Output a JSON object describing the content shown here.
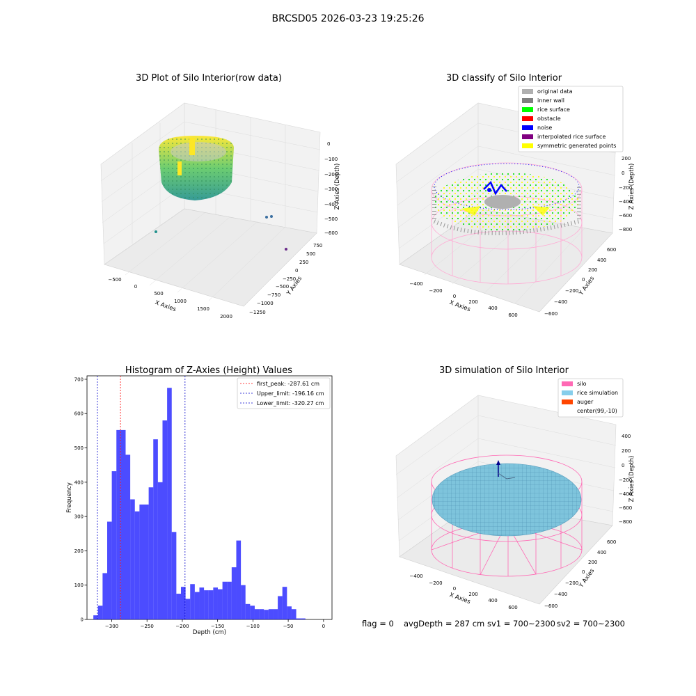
{
  "suptitle": "BRCSD05 2026-03-23 19:25:26",
  "footer": {
    "flag": "flag = 0",
    "avg_depth": "avgDepth = 287 cm",
    "sv1": "sv1 = 700~2300",
    "sv2": "sv2 = 700~2300"
  },
  "panel1": {
    "title": "3D Plot of Silo Interior(row data)",
    "xlabel": "X Axies",
    "ylabel": "Y Axies",
    "zlabel": "Z Axies (Depth)",
    "xticks": [
      "−500",
      "0",
      "500",
      "1000",
      "1500",
      "2000"
    ],
    "yticks": [
      "750",
      "500",
      "250",
      "0",
      "−250",
      "−500",
      "−750",
      "−1000",
      "−1250"
    ],
    "zticks": [
      "0",
      "−100",
      "−200",
      "−300",
      "−400",
      "−500",
      "−600"
    ]
  },
  "panel2": {
    "title": "3D classify of Silo Interior",
    "xlabel": "X Axies",
    "ylabel": "Y Axies",
    "zlabel": "Z Axies (Depth)",
    "xticks": [
      "−400",
      "−200",
      "0",
      "200",
      "400",
      "600"
    ],
    "yticks": [
      "600",
      "400",
      "200",
      "0",
      "−200",
      "−400",
      "−600"
    ],
    "zticks": [
      "200",
      "0",
      "−200",
      "−400",
      "−600",
      "−800"
    ],
    "legend": [
      {
        "label": "original data",
        "color": "#b0b0b0"
      },
      {
        "label": "inner wall",
        "color": "#808080"
      },
      {
        "label": "rice surface",
        "color": "#00ff00"
      },
      {
        "label": "obstacle",
        "color": "#ff0000"
      },
      {
        "label": "noise",
        "color": "#0000ff"
      },
      {
        "label": "interpolated rice surface",
        "color": "#800080"
      },
      {
        "label": "symmetric generated points",
        "color": "#ffff00"
      }
    ]
  },
  "panel4": {
    "title": "3D simulation of Silo Interior",
    "xlabel": "X Axies",
    "ylabel": "Y Axies",
    "zlabel": "Z Axies (Depth)",
    "xticks": [
      "−400",
      "−200",
      "0",
      "200",
      "400",
      "600"
    ],
    "yticks": [
      "600",
      "400",
      "200",
      "0",
      "−200",
      "−400",
      "−600"
    ],
    "zticks": [
      "400",
      "200",
      "0",
      "−200",
      "−400",
      "−600",
      "−800"
    ],
    "legend": [
      {
        "label": "silo",
        "color": "#ff69b4"
      },
      {
        "label": "rice simulation",
        "color": "#87ceeb"
      },
      {
        "label": "auger",
        "color": "#ff4500"
      },
      {
        "label": "center(99,-10)",
        "color": "none"
      }
    ]
  },
  "chart_data": {
    "type": "bar",
    "title": "Histogram of Z-Axies (Height) Values",
    "xlabel": "Depth (cm)",
    "ylabel": "Frequency",
    "xlim": [
      -335,
      12
    ],
    "ylim": [
      0,
      710
    ],
    "xticks": [
      -300,
      -250,
      -200,
      -150,
      -100,
      -50,
      0
    ],
    "xtick_labels": [
      "−300",
      "−250",
      "−200",
      "−150",
      "−100",
      "−50",
      "0"
    ],
    "yticks": [
      0,
      100,
      200,
      300,
      400,
      500,
      600,
      700
    ],
    "bar_color": "#0000ff",
    "bin_start": -326,
    "bin_width": 6.53,
    "values": [
      12,
      40,
      135,
      285,
      432,
      552,
      552,
      480,
      350,
      315,
      335,
      335,
      385,
      525,
      400,
      580,
      675,
      255,
      75,
      95,
      60,
      103,
      80,
      93,
      85,
      85,
      93,
      88,
      110,
      110,
      152,
      230,
      100,
      45,
      40,
      30,
      30,
      28,
      30,
      30,
      68,
      95,
      38,
      30,
      3,
      3
    ],
    "lines": [
      {
        "value": -287.61,
        "color": "#ff0000",
        "label": "first_peak: -287.61 cm"
      },
      {
        "value": -196.16,
        "color": "#0000cc",
        "label": "Upper_limit: -196.16 cm"
      },
      {
        "value": -320.27,
        "color": "#0000cc",
        "label": "Lower_limit: -320.27 cm"
      }
    ],
    "legend_position": "top-right"
  }
}
